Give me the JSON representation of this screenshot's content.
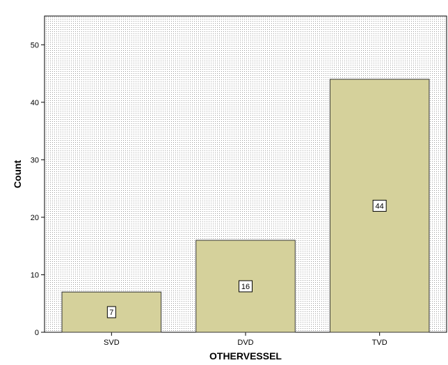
{
  "chart_data": {
    "type": "bar",
    "title": "",
    "xlabel": "OTHERVESSEL",
    "ylabel": "Count",
    "categories": [
      "SVD",
      "DVD",
      "TVD"
    ],
    "values": [
      7,
      16,
      44
    ],
    "data_labels": [
      "7",
      "16",
      "44"
    ],
    "ylim": [
      0,
      55
    ],
    "yticks": [
      0,
      10,
      20,
      30,
      40,
      50
    ],
    "grid": false,
    "legend": "none",
    "colors": {
      "bar_fill": "#d5d19b",
      "bar_stroke": "#333333",
      "plot_background": "#e8e8e8",
      "plot_dots": "#9a9a9a"
    }
  }
}
